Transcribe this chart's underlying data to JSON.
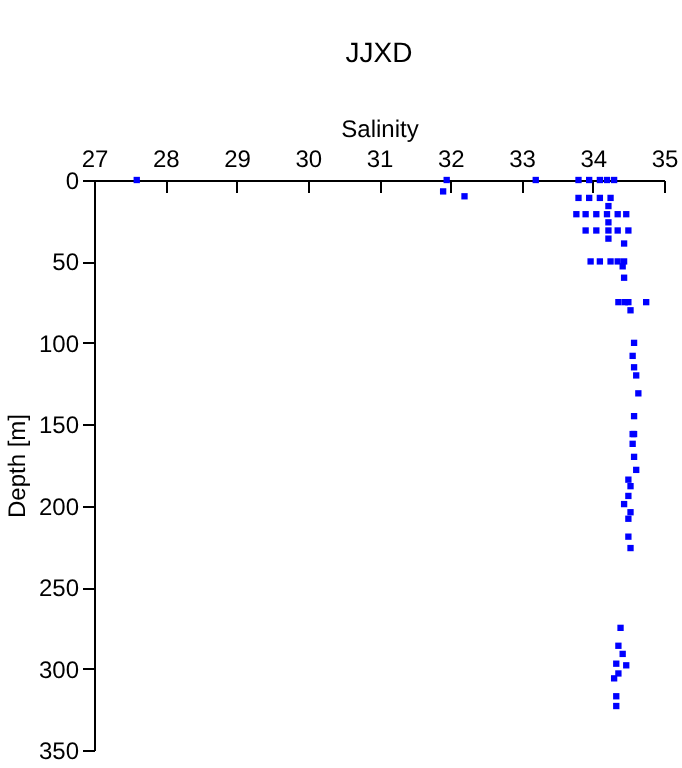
{
  "chart_data": {
    "type": "scatter",
    "title": "JJXD",
    "xlabel": "Salinity",
    "ylabel": "Depth [m]",
    "xlim": [
      27,
      35
    ],
    "xticks": [
      27,
      28,
      29,
      30,
      31,
      32,
      33,
      34,
      35
    ],
    "ylim": [
      350,
      0
    ],
    "yticks": [
      0,
      50,
      100,
      150,
      200,
      250,
      300,
      350
    ],
    "grid": false,
    "marker": "square",
    "series": [
      {
        "color": "#0000ff",
        "x": [
          27.6,
          31.95,
          33.2,
          31.9,
          32.2,
          33.8,
          33.95,
          34.1,
          34.2,
          34.3,
          33.8,
          33.95,
          34.1,
          34.25,
          34.22,
          33.77,
          33.9,
          34.05,
          34.2,
          34.35,
          34.47,
          34.22,
          33.9,
          34.05,
          34.22,
          34.35,
          34.5,
          34.22,
          34.44,
          33.97,
          34.1,
          34.25,
          34.35,
          34.44,
          34.42,
          34.44,
          34.36,
          34.45,
          34.5,
          34.75,
          34.53,
          34.58,
          34.56,
          34.58,
          34.61,
          34.64,
          34.58,
          34.56,
          34.58,
          34.56,
          34.58,
          34.61,
          34.5,
          34.53,
          34.5,
          34.44,
          34.53,
          34.5,
          34.5,
          34.53,
          34.39,
          34.36,
          34.42,
          34.33,
          34.47,
          34.36,
          34.3,
          34.33,
          34.33
        ],
        "values": [
          0,
          0,
          0,
          7,
          10,
          0,
          0,
          0,
          0,
          0,
          11,
          11,
          11,
          11,
          16,
          21,
          21,
          21,
          21,
          21,
          21,
          26,
          31,
          31,
          31,
          31,
          31,
          36,
          39,
          50,
          50,
          50,
          50,
          50,
          53,
          60,
          75,
          75,
          75,
          75,
          80,
          100,
          108,
          115,
          120,
          131,
          145,
          156,
          156,
          162,
          170,
          178,
          184,
          188,
          194,
          199,
          204,
          208,
          219,
          226,
          275,
          286,
          291,
          297,
          298,
          303,
          306,
          317,
          323
        ]
      }
    ]
  }
}
